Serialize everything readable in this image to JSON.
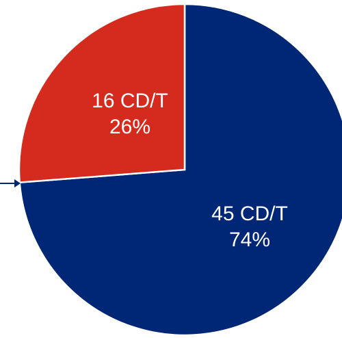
{
  "chart_data": {
    "type": "pie",
    "title": "",
    "start_angle_deg": 0,
    "direction": "clockwise",
    "slices": [
      {
        "value": 45,
        "value_label": "45 CD/T",
        "percent_label": "74%",
        "color": "#002776"
      },
      {
        "value": 16,
        "value_label": "16 CD/T",
        "percent_label": "26%",
        "color": "#D52B1E"
      }
    ],
    "slice_border_color": "#ffffff",
    "callout_arrow_color": "#002776"
  }
}
